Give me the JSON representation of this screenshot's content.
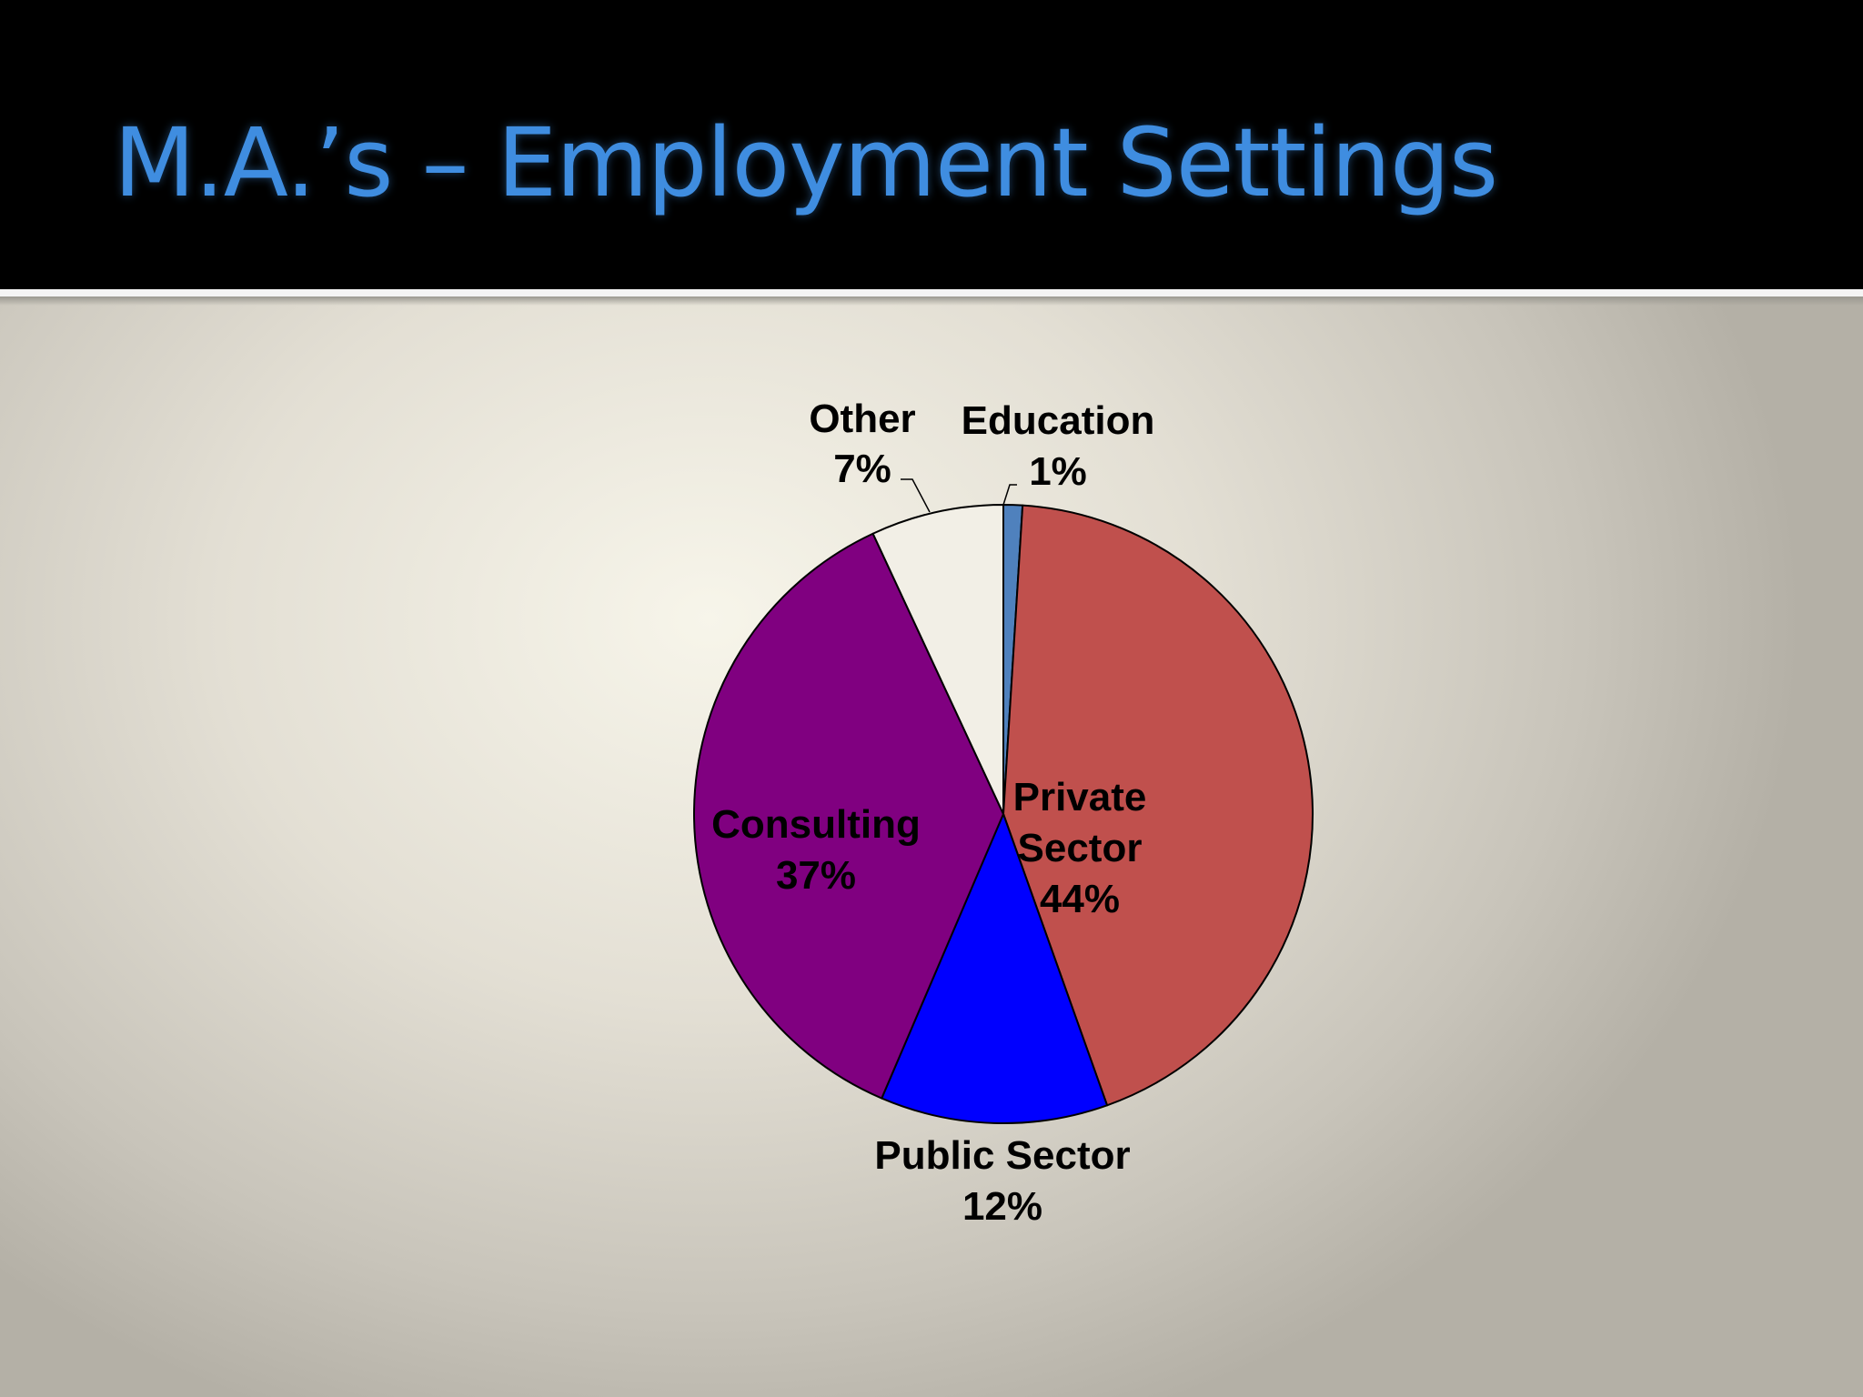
{
  "slide": {
    "title": "M.A.’s – Employment Settings"
  },
  "colors": {
    "title_text": "#3f8de0",
    "title_bar": "#000000",
    "slice_outline": "#000000"
  },
  "chart_data": {
    "type": "pie",
    "title": "",
    "slices": [
      {
        "label": "Education",
        "value": 1,
        "value_label": "1%",
        "color": "#4f81bd"
      },
      {
        "label": "Private Sector",
        "value": 44,
        "value_label": "44%",
        "color": "#c0504d"
      },
      {
        "label": "Public Sector",
        "value": 12,
        "value_label": "12%",
        "color": "#0000ff"
      },
      {
        "label": "Consulting",
        "value": 37,
        "value_label": "37%",
        "color": "#800080"
      },
      {
        "label": "Other",
        "value": 7,
        "value_label": "7%",
        "color": "#f2efe6"
      }
    ],
    "start_angle": "12 o'clock, clockwise",
    "legend": "none",
    "data_labels": "category name and percentage"
  }
}
